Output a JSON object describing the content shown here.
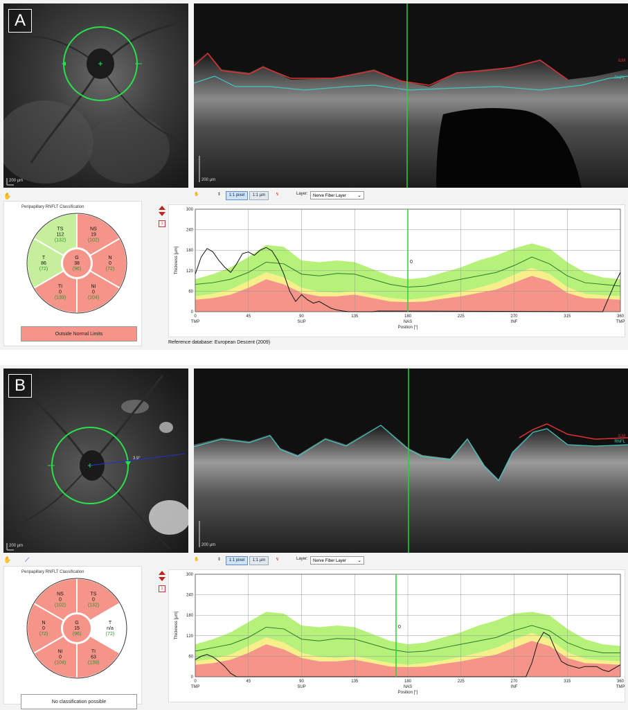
{
  "panels": [
    {
      "id": "A",
      "letter": "A",
      "fundus_scale": "200 µm",
      "bscan_scale": "200 µm",
      "bscan_labels": {
        "top": "ILM",
        "bottom": "RNFL"
      },
      "toolbar": {
        "btn_pixel": "1:1 pixel",
        "btn_um": "1:1 µm",
        "layer_label": "Layer:",
        "layer_value": "Nerve Fiber Layer"
      },
      "classification": {
        "title": "Peripapillary RNFLT Classification",
        "status": "Outside Normal Limits",
        "status_color": "#f5958a",
        "sectors": {
          "TS": {
            "label": "TS",
            "value": "112",
            "ref": "(132)",
            "color": "#c5ef9a"
          },
          "NS": {
            "label": "NS",
            "value": "19",
            "ref": "(102)",
            "color": "#f5958a"
          },
          "N": {
            "label": "N",
            "value": "0",
            "ref": "(72)",
            "color": "#f5958a"
          },
          "NI": {
            "label": "NI",
            "value": "0",
            "ref": "(104)",
            "color": "#f5958a"
          },
          "TI": {
            "label": "TI",
            "value": "0",
            "ref": "(139)",
            "color": "#f5958a"
          },
          "T": {
            "label": "T",
            "value": "86",
            "ref": "(72)",
            "color": "#c5ef9a"
          },
          "G": {
            "label": "G",
            "value": "38",
            "ref": "(96)",
            "color": "#f5958a"
          }
        }
      },
      "flag": "1",
      "reference_db": "Reference database: European Descent (2009)",
      "chart_data": {
        "type": "line",
        "ylabel": "Thickness [µm]",
        "xlabel": "Position [°]",
        "xlim": [
          0,
          360
        ],
        "ylim": [
          0,
          300
        ],
        "x_ticks": [
          0,
          45,
          90,
          135,
          180,
          225,
          270,
          315,
          360
        ],
        "y_ticks": [
          0,
          60,
          120,
          180,
          240,
          300
        ],
        "sector_labels": [
          {
            "x": 0,
            "label": "TMP"
          },
          {
            "x": 90,
            "label": "SUP"
          },
          {
            "x": 180,
            "label": "NAS"
          },
          {
            "x": 270,
            "label": "INF"
          },
          {
            "x": 360,
            "label": "TMP"
          }
        ],
        "cursor_x": 180,
        "cursor_label": "0",
        "grid": true,
        "x_sample": [
          0,
          15,
          30,
          45,
          60,
          75,
          90,
          105,
          120,
          135,
          150,
          165,
          180,
          195,
          210,
          225,
          240,
          255,
          270,
          285,
          300,
          315,
          330,
          345,
          360
        ],
        "band_red_upper": [
          35,
          40,
          50,
          70,
          95,
          80,
          55,
          45,
          45,
          50,
          40,
          30,
          28,
          30,
          38,
          45,
          55,
          65,
          85,
          105,
          90,
          55,
          40,
          38,
          35
        ],
        "band_yellow_upper": [
          45,
          52,
          65,
          90,
          115,
          100,
          70,
          58,
          55,
          60,
          50,
          40,
          35,
          40,
          48,
          58,
          70,
          85,
          108,
          128,
          110,
          72,
          52,
          48,
          45
        ],
        "band_green_upper": [
          95,
          110,
          130,
          160,
          195,
          190,
          150,
          145,
          150,
          145,
          125,
          105,
          95,
          100,
          115,
          130,
          150,
          165,
          185,
          200,
          185,
          145,
          115,
          100,
          95
        ],
        "mean_curve": [
          80,
          85,
          95,
          115,
          145,
          140,
          110,
          105,
          112,
          110,
          95,
          80,
          72,
          75,
          85,
          95,
          105,
          115,
          135,
          160,
          140,
          105,
          85,
          80,
          75
        ],
        "patient_curve": {
          "x": [
            0,
            5,
            10,
            15,
            20,
            25,
            30,
            35,
            40,
            45,
            50,
            55,
            60,
            65,
            70,
            75,
            80,
            85,
            90,
            95,
            100,
            105,
            110,
            115,
            120,
            125,
            130,
            135,
            140,
            150,
            155,
            345,
            350,
            355,
            360
          ],
          "y": [
            110,
            160,
            185,
            175,
            150,
            130,
            115,
            140,
            170,
            175,
            165,
            180,
            188,
            178,
            150,
            110,
            60,
            30,
            50,
            35,
            25,
            30,
            20,
            10,
            5,
            2,
            0,
            0,
            0,
            0,
            2,
            0,
            40,
            80,
            115
          ]
        },
        "colors": {
          "red": "#f5958a",
          "yellow": "#f7f08a",
          "green": "#b6f27a",
          "mean": "#2a7a2a",
          "patient": "#111111",
          "cursor": "#29d13a"
        }
      }
    },
    {
      "id": "B",
      "letter": "B",
      "fundus_scale": "200 µm",
      "fundus_measure": "3.9°",
      "bscan_scale": "200 µm",
      "bscan_labels": {
        "top": "ILM",
        "bottom": "RNFL"
      },
      "toolbar": {
        "btn_pixel": "1:1 pixel",
        "btn_um": "1:1 µm",
        "layer_label": "Layer:",
        "layer_value": "Nerve Fiber Layer"
      },
      "classification": {
        "title": "Peripapillary RNFLT Classification",
        "status": "No classification possible",
        "status_color": "#ffffff",
        "sectors": {
          "NS": {
            "label": "NS",
            "value": "0",
            "ref": "(102)",
            "color": "#f5958a"
          },
          "TS": {
            "label": "TS",
            "value": "0",
            "ref": "(132)",
            "color": "#f5958a"
          },
          "T": {
            "label": "T",
            "value": "n/a",
            "ref": "(72)",
            "color": "#ffffff"
          },
          "TI": {
            "label": "TI",
            "value": "63",
            "ref": "(139)",
            "color": "#f5958a"
          },
          "NI": {
            "label": "NI",
            "value": "0",
            "ref": "(104)",
            "color": "#f5958a"
          },
          "N": {
            "label": "N",
            "value": "0",
            "ref": "(72)",
            "color": "#f5958a"
          },
          "G": {
            "label": "G",
            "value": "15",
            "ref": "(96)",
            "color": "#f5958a"
          }
        }
      },
      "flag": "1",
      "chart_data": {
        "type": "line",
        "ylabel": "Thickness [µm]",
        "xlabel": "Position [°]",
        "xlim": [
          0,
          360
        ],
        "ylim": [
          0,
          300
        ],
        "x_ticks": [
          0,
          45,
          90,
          135,
          180,
          225,
          270,
          315,
          360
        ],
        "y_ticks": [
          0,
          60,
          120,
          180,
          240,
          300
        ],
        "sector_labels": [
          {
            "x": 0,
            "label": "TMP"
          },
          {
            "x": 90,
            "label": "SUP"
          },
          {
            "x": 180,
            "label": "NAS"
          },
          {
            "x": 270,
            "label": "INF"
          },
          {
            "x": 360,
            "label": "TMP"
          }
        ],
        "cursor_x": 170,
        "cursor_label": "0",
        "grid": true,
        "x_sample": [
          0,
          15,
          30,
          45,
          60,
          75,
          90,
          105,
          120,
          135,
          150,
          165,
          180,
          195,
          210,
          225,
          240,
          255,
          270,
          285,
          300,
          315,
          330,
          345,
          360
        ],
        "band_red_upper": [
          35,
          40,
          50,
          70,
          95,
          80,
          55,
          45,
          45,
          50,
          40,
          30,
          28,
          30,
          38,
          45,
          55,
          65,
          85,
          105,
          90,
          55,
          40,
          38,
          35
        ],
        "band_yellow_upper": [
          45,
          52,
          65,
          90,
          115,
          100,
          70,
          58,
          55,
          60,
          50,
          40,
          35,
          40,
          48,
          58,
          70,
          85,
          108,
          128,
          110,
          72,
          52,
          48,
          45
        ],
        "band_green_upper": [
          95,
          110,
          130,
          160,
          190,
          185,
          150,
          145,
          150,
          145,
          125,
          105,
          95,
          100,
          115,
          130,
          150,
          165,
          185,
          190,
          180,
          140,
          110,
          95,
          90
        ],
        "mean_curve": [
          75,
          85,
          95,
          115,
          145,
          140,
          110,
          105,
          112,
          110,
          95,
          80,
          72,
          75,
          85,
          95,
          105,
          115,
          135,
          150,
          135,
          100,
          80,
          70,
          70
        ],
        "patient_curve": {
          "x": [
            0,
            5,
            10,
            15,
            20,
            25,
            30,
            35,
            280,
            285,
            290,
            295,
            300,
            305,
            310,
            315,
            320,
            325,
            330,
            340,
            345,
            350,
            355,
            360
          ],
          "y": [
            50,
            60,
            65,
            58,
            45,
            30,
            10,
            0,
            0,
            40,
            100,
            130,
            120,
            80,
            45,
            35,
            30,
            25,
            30,
            30,
            20,
            15,
            25,
            35
          ]
        },
        "colors": {
          "red": "#f5958a",
          "yellow": "#f7f08a",
          "green": "#b6f27a",
          "mean": "#2a7a2a",
          "patient": "#111111",
          "cursor": "#29d13a"
        }
      }
    }
  ]
}
